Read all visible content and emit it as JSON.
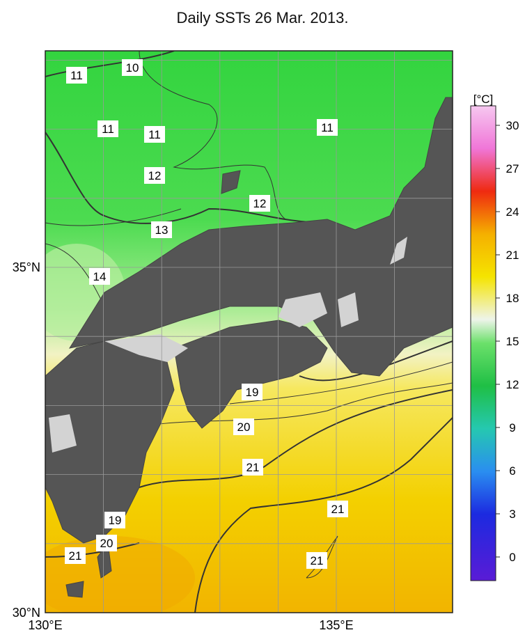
{
  "title": "Daily SSTs 26 Mar. 2013.",
  "map": {
    "lon_labels": [
      "130°E",
      "135°E"
    ],
    "lat_labels": [
      "35°N",
      "30°N"
    ],
    "contour_labels": [
      "11",
      "10",
      "11",
      "11",
      "11",
      "12",
      "12",
      "13",
      "14",
      "19",
      "20",
      "21",
      "21",
      "19",
      "20",
      "21",
      "21"
    ]
  },
  "colorbar": {
    "unit": "[°C]",
    "ticks": [
      30,
      27,
      24,
      21,
      18,
      15,
      12,
      9,
      6,
      3,
      0
    ]
  }
}
